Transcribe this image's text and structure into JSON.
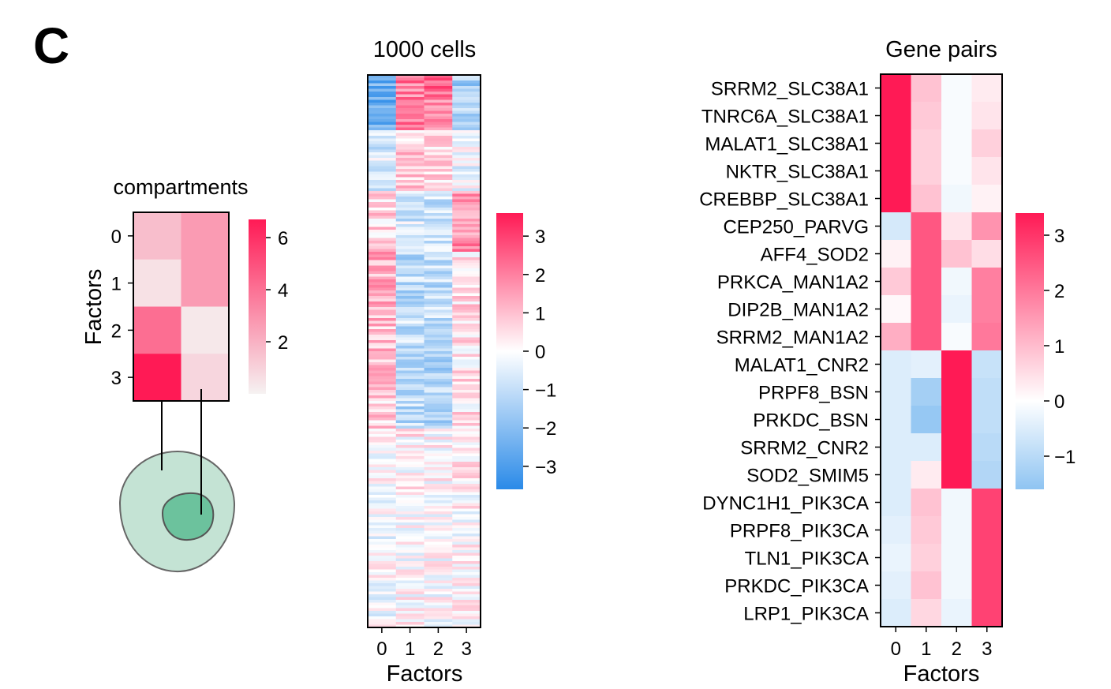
{
  "panel_label": "C",
  "colors": {
    "pos": "#ff1a55",
    "neg": "#2a8ae8",
    "mid": "#ffffff",
    "cell_fill": "#c4e3d4",
    "nucleus_fill": "#6cc29d",
    "outline": "#666666",
    "frame": "#000000"
  },
  "icons": {
    "cell": "cell-diagram-icon",
    "nucleus": "nucleus-icon"
  },
  "chart_data": [
    {
      "id": "compartments",
      "type": "heatmap",
      "title": "compartments",
      "ylabel": "Factors",
      "xlabel": "",
      "yticklabels": [
        "0",
        "1",
        "2",
        "3"
      ],
      "values": [
        [
          2.0,
          3.0
        ],
        [
          1.0,
          3.0
        ],
        [
          4.3,
          0.8
        ],
        [
          6.7,
          1.3
        ]
      ],
      "colorbar": {
        "min": 0.0,
        "max": 6.7,
        "ticks": [
          2,
          4,
          6
        ],
        "tick_labels": [
          "2",
          "4",
          "6"
        ]
      }
    },
    {
      "id": "cells",
      "type": "heatmap",
      "title": "1000 cells",
      "xlabel": "Factors",
      "xticklabels": [
        "0",
        "1",
        "2",
        "3"
      ],
      "rows": 1000,
      "values_note": "",
      "row_groups": [
        {
          "count": 40,
          "means": [
            -2.5,
            2.0,
            2.4,
            -1.5
          ]
        },
        {
          "count": 60,
          "means": [
            -2.5,
            2.2,
            1.8,
            -1.2
          ]
        },
        {
          "count": 110,
          "means": [
            -0.6,
            0.8,
            0.6,
            -0.3
          ]
        },
        {
          "count": 110,
          "means": [
            0.6,
            -0.7,
            -0.8,
            1.7
          ]
        },
        {
          "count": 100,
          "means": [
            1.3,
            -1.1,
            -1.0,
            0.5
          ]
        },
        {
          "count": 100,
          "means": [
            1.0,
            -1.0,
            -1.1,
            0.4
          ]
        },
        {
          "count": 120,
          "means": [
            0.8,
            -1.1,
            -1.2,
            0.4
          ]
        },
        {
          "count": 120,
          "means": [
            0.2,
            0.2,
            0.1,
            0.3
          ]
        },
        {
          "count": 240,
          "means": [
            -0.1,
            0.1,
            0.0,
            0.1
          ]
        }
      ],
      "colorbar": {
        "min": -3.6,
        "max": 3.6,
        "ticks": [
          3,
          2,
          1,
          0,
          -1,
          -2,
          -3
        ],
        "tick_labels": [
          "3",
          "2",
          "1",
          "0",
          "−1",
          "−2",
          "−3"
        ]
      }
    },
    {
      "id": "gene_pairs",
      "type": "heatmap",
      "title": "Gene pairs",
      "xlabel": "Factors",
      "xticklabels": [
        "0",
        "1",
        "2",
        "3"
      ],
      "yticklabels": [
        "SRRM2_SLC38A1",
        "TNRC6A_SLC38A1",
        "MALAT1_SLC38A1",
        "NKTR_SLC38A1",
        "CREBBP_SLC38A1",
        "CEP250_PARVG",
        "AFF4_SOD2",
        "PRKCA_MAN1A2",
        "DIP2B_MAN1A2",
        "SRRM2_MAN1A2",
        "MALAT1_CNR2",
        "PRPF8_BSN",
        "PRKDC_BSN",
        "SRRM2_CNR2",
        "SOD2_SMIM5",
        "DYNC1H1_PIK3CA",
        "PRPF8_PIK3CA",
        "TLN1_PIK3CA",
        "PRKDC_PIK3CA",
        "LRP1_PIK3CA"
      ],
      "values": [
        [
          3.4,
          0.9,
          -0.1,
          0.3
        ],
        [
          3.4,
          0.8,
          -0.1,
          0.4
        ],
        [
          3.4,
          0.7,
          -0.1,
          0.7
        ],
        [
          3.4,
          0.7,
          -0.1,
          0.4
        ],
        [
          3.4,
          0.9,
          -0.2,
          0.2
        ],
        [
          -0.6,
          2.5,
          0.4,
          1.6
        ],
        [
          0.2,
          2.5,
          0.9,
          0.5
        ],
        [
          0.8,
          2.5,
          -0.2,
          1.9
        ],
        [
          0.1,
          2.5,
          -0.3,
          1.9
        ],
        [
          1.2,
          2.5,
          -0.1,
          2.0
        ],
        [
          -0.5,
          -0.4,
          3.4,
          -0.8
        ],
        [
          -0.5,
          -1.3,
          3.4,
          -0.9
        ],
        [
          -0.5,
          -1.5,
          3.4,
          -0.9
        ],
        [
          -0.5,
          -0.5,
          3.4,
          -1.0
        ],
        [
          -0.5,
          0.3,
          3.4,
          -1.1
        ],
        [
          -0.5,
          0.9,
          -0.2,
          2.8
        ],
        [
          -0.4,
          0.8,
          -0.2,
          2.8
        ],
        [
          -0.3,
          0.7,
          -0.2,
          2.8
        ],
        [
          -0.4,
          0.9,
          -0.2,
          2.8
        ],
        [
          -0.5,
          0.6,
          -0.3,
          2.8
        ]
      ],
      "colorbar": {
        "min": -1.6,
        "max": 3.4,
        "ticks": [
          3,
          2,
          1,
          0,
          -1
        ],
        "tick_labels": [
          "3",
          "2",
          "1",
          "0",
          "−1"
        ]
      }
    }
  ]
}
